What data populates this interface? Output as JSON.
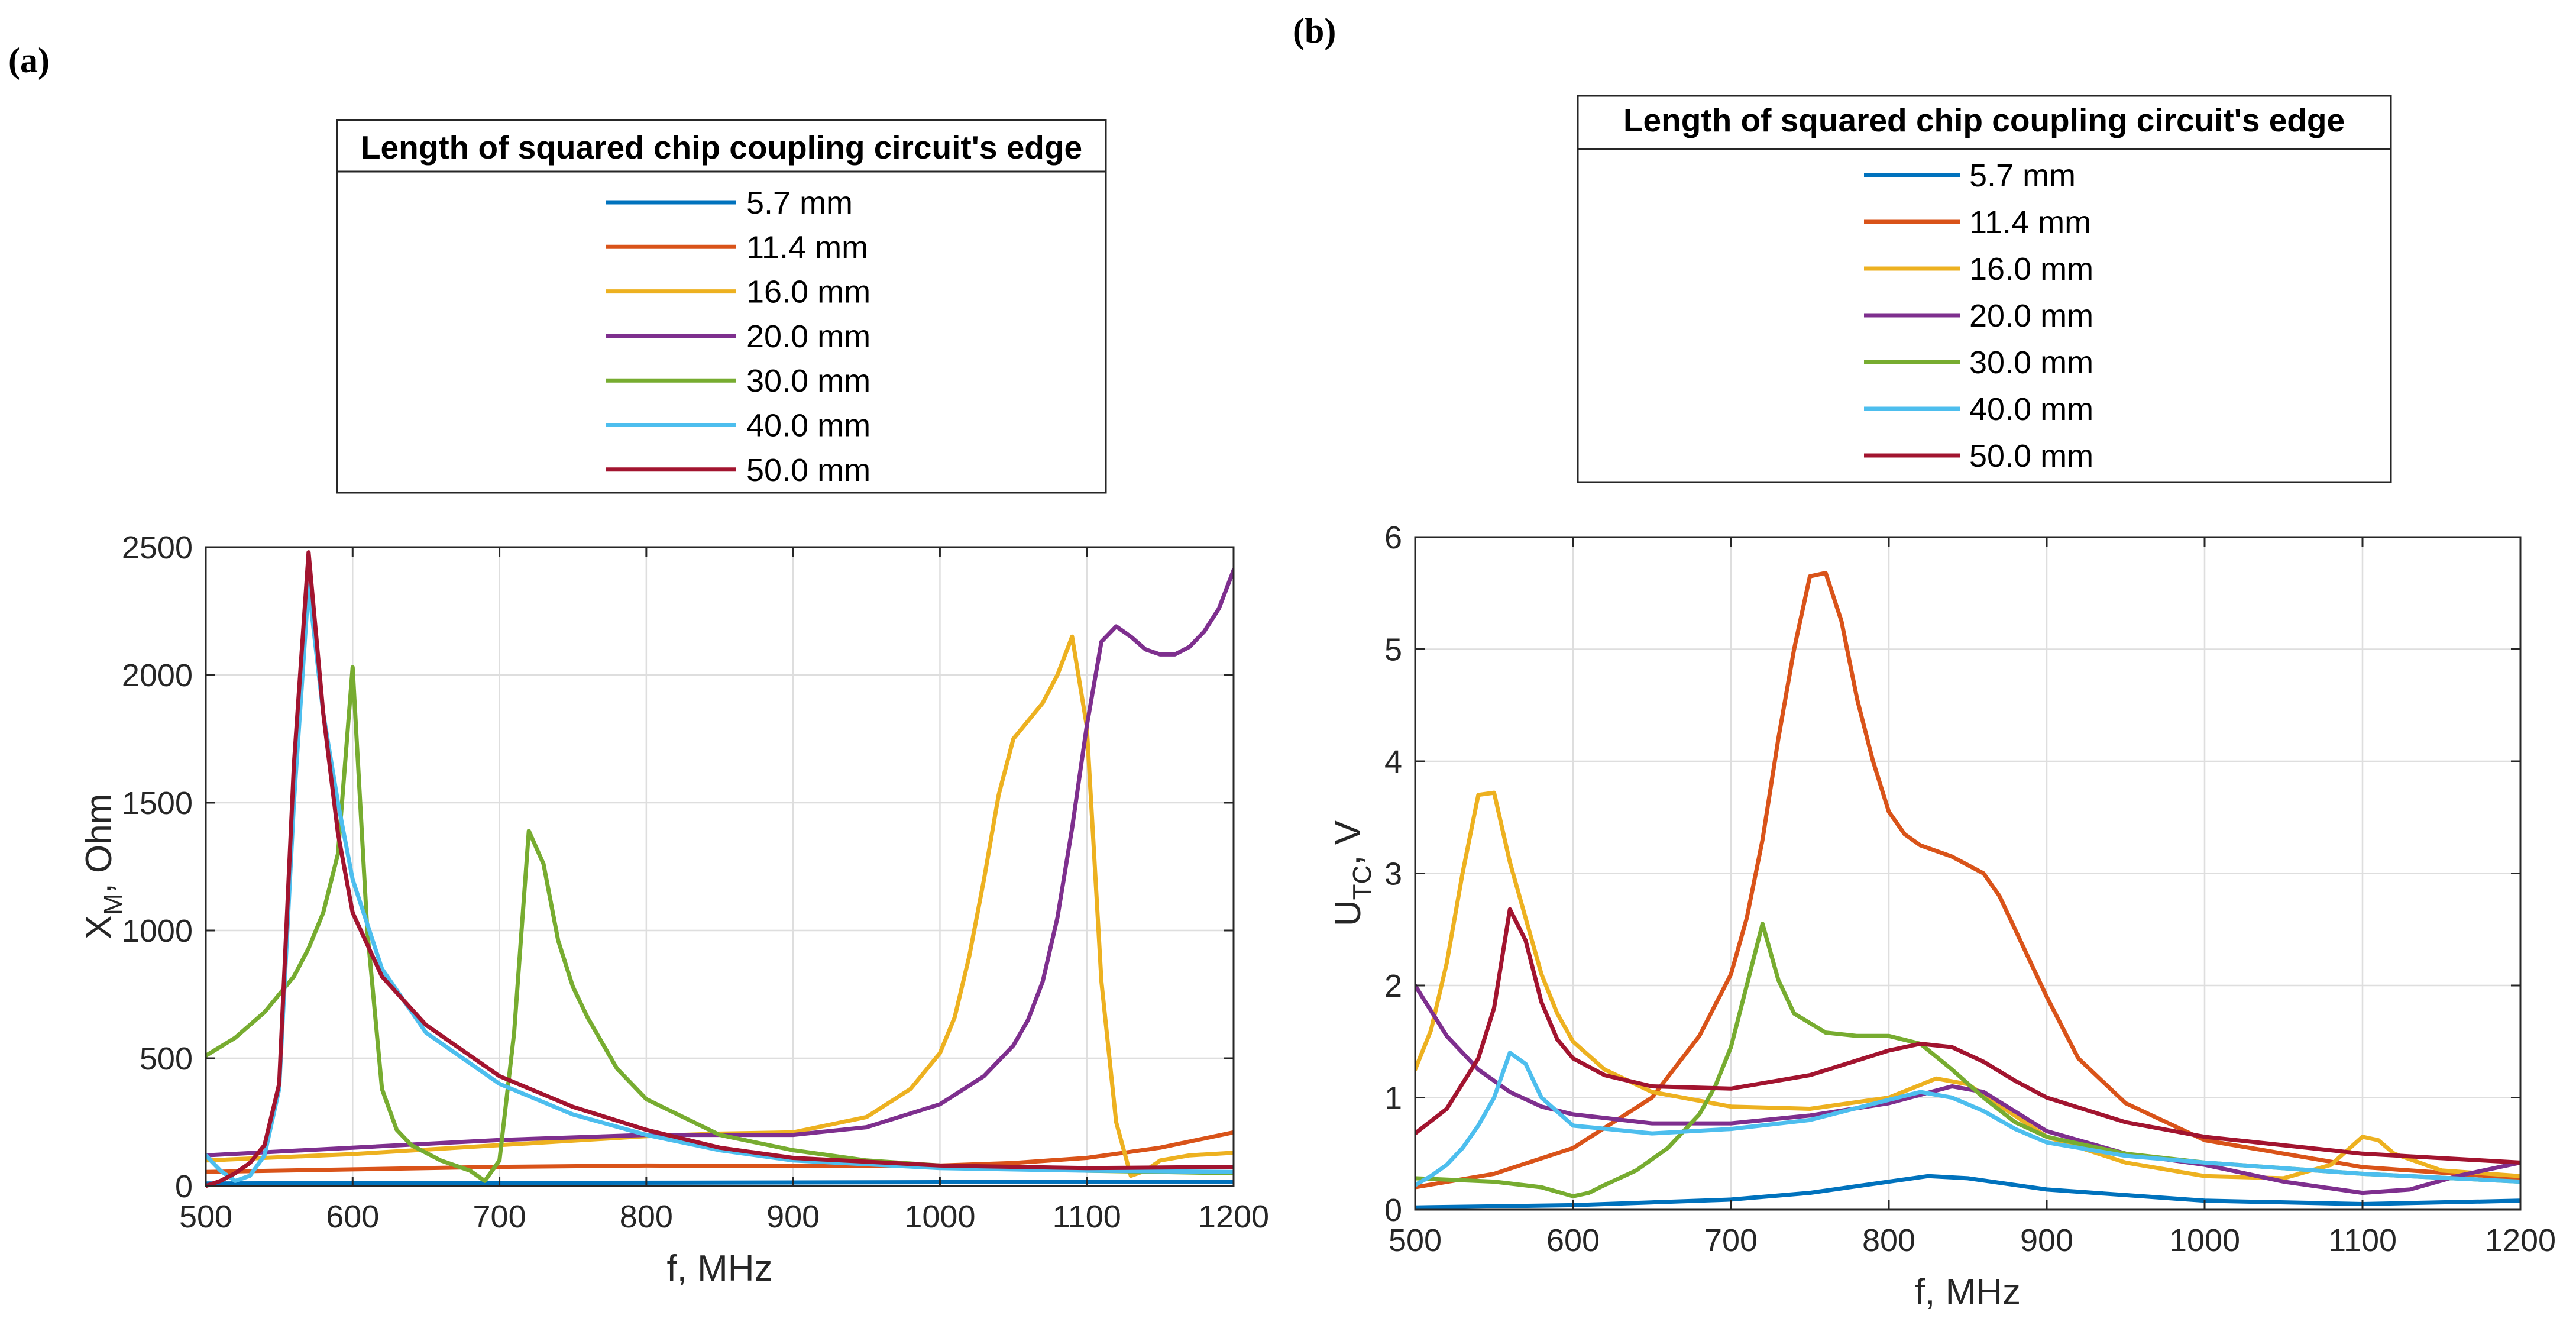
{
  "panels": [
    {
      "label": "(a)",
      "legend_title": "Length of squared chip coupling circuit's edge"
    },
    {
      "label": "(b)",
      "legend_title": "Length of squared chip coupling circuit's edge"
    }
  ],
  "chart_data": [
    {
      "type": "line",
      "title": "",
      "xlabel": "f, MHz",
      "ylabel": "X_M, Ohm",
      "ylabel_main": "X",
      "ylabel_sub": "M",
      "ylabel_rest": ", Ohm",
      "xlim": [
        500,
        1200
      ],
      "ylim": [
        0,
        2500
      ],
      "xticks": [
        500,
        600,
        700,
        800,
        900,
        1000,
        1100,
        1200
      ],
      "yticks": [
        0,
        500,
        1000,
        1500,
        2000,
        2500
      ],
      "grid": true,
      "legend_location": "top",
      "series": [
        {
          "name": "5.7 mm",
          "color": "#0072BD",
          "x": [
            500,
            700,
            900,
            1000,
            1100,
            1200
          ],
          "y": [
            10,
            12,
            14,
            15,
            15,
            15
          ]
        },
        {
          "name": "11.4 mm",
          "color": "#D95319",
          "x": [
            500,
            600,
            700,
            800,
            900,
            1000,
            1050,
            1100,
            1150,
            1200
          ],
          "y": [
            55,
            65,
            75,
            80,
            78,
            80,
            90,
            110,
            150,
            210
          ]
        },
        {
          "name": "16.0 mm",
          "color": "#EDB120",
          "x": [
            500,
            600,
            700,
            800,
            850,
            900,
            950,
            980,
            1000,
            1010,
            1020,
            1030,
            1040,
            1050,
            1060,
            1070,
            1080,
            1090,
            1100,
            1110,
            1120,
            1130,
            1140,
            1150,
            1170,
            1200
          ],
          "y": [
            100,
            125,
            160,
            195,
            205,
            210,
            270,
            380,
            520,
            660,
            900,
            1200,
            1530,
            1750,
            1820,
            1890,
            2000,
            2150,
            1800,
            800,
            250,
            40,
            60,
            100,
            120,
            130
          ]
        },
        {
          "name": "20.0 mm",
          "color": "#7E2F8E",
          "x": [
            500,
            600,
            700,
            800,
            900,
            950,
            1000,
            1030,
            1050,
            1060,
            1070,
            1080,
            1090,
            1100,
            1110,
            1120,
            1130,
            1140,
            1150,
            1160,
            1170,
            1180,
            1190,
            1200
          ],
          "y": [
            120,
            150,
            180,
            200,
            200,
            230,
            320,
            430,
            550,
            650,
            800,
            1050,
            1400,
            1800,
            2130,
            2190,
            2150,
            2100,
            2080,
            2080,
            2110,
            2170,
            2260,
            2410
          ]
        },
        {
          "name": "30.0 mm",
          "color": "#77AC30",
          "x": [
            500,
            520,
            540,
            560,
            570,
            580,
            590,
            600,
            610,
            620,
            630,
            640,
            660,
            680,
            690,
            700,
            710,
            720,
            730,
            740,
            750,
            760,
            780,
            800,
            850,
            900,
            950,
            1000,
            1100,
            1200
          ],
          "y": [
            510,
            580,
            680,
            820,
            930,
            1070,
            1300,
            2030,
            1000,
            380,
            220,
            160,
            100,
            60,
            20,
            100,
            600,
            1390,
            1260,
            960,
            780,
            660,
            460,
            340,
            200,
            140,
            100,
            80,
            60,
            50
          ]
        },
        {
          "name": "40.0 mm",
          "color": "#4DBEEE",
          "x": [
            500,
            510,
            520,
            530,
            540,
            550,
            560,
            570,
            580,
            590,
            600,
            620,
            650,
            700,
            750,
            800,
            850,
            900,
            1000,
            1100,
            1200
          ],
          "y": [
            120,
            60,
            20,
            40,
            120,
            380,
            1500,
            2350,
            1850,
            1500,
            1200,
            850,
            600,
            400,
            280,
            200,
            140,
            100,
            70,
            60,
            55
          ]
        },
        {
          "name": "50.0 mm",
          "color": "#A2142F",
          "x": [
            500,
            510,
            520,
            530,
            540,
            550,
            560,
            570,
            580,
            590,
            600,
            620,
            650,
            700,
            750,
            800,
            850,
            900,
            1000,
            1100,
            1200
          ],
          "y": [
            0,
            20,
            50,
            90,
            160,
            400,
            1650,
            2480,
            1850,
            1380,
            1070,
            820,
            630,
            430,
            310,
            220,
            150,
            110,
            80,
            70,
            75
          ]
        }
      ]
    },
    {
      "type": "line",
      "title": "",
      "xlabel": "f, MHz",
      "ylabel": "U_TC, V",
      "ylabel_main": "U",
      "ylabel_sub": "TC",
      "ylabel_rest": ", V",
      "xlim": [
        500,
        1200
      ],
      "ylim": [
        0,
        6
      ],
      "xticks": [
        500,
        600,
        700,
        800,
        900,
        1000,
        1100,
        1200
      ],
      "yticks": [
        0,
        1,
        2,
        3,
        4,
        5,
        6
      ],
      "grid": true,
      "legend_location": "top",
      "series": [
        {
          "name": "5.7 mm",
          "color": "#0072BD",
          "x": [
            500,
            600,
            700,
            750,
            800,
            825,
            850,
            900,
            1000,
            1100,
            1200
          ],
          "y": [
            0.02,
            0.04,
            0.09,
            0.15,
            0.25,
            0.3,
            0.28,
            0.18,
            0.08,
            0.05,
            0.08
          ]
        },
        {
          "name": "11.4 mm",
          "color": "#D95319",
          "x": [
            500,
            550,
            600,
            650,
            680,
            700,
            710,
            720,
            730,
            740,
            750,
            760,
            770,
            780,
            790,
            800,
            810,
            820,
            840,
            860,
            870,
            880,
            900,
            920,
            950,
            1000,
            1100,
            1200
          ],
          "y": [
            0.2,
            0.32,
            0.55,
            1.0,
            1.55,
            2.1,
            2.6,
            3.3,
            4.2,
            5.0,
            5.65,
            5.68,
            5.25,
            4.55,
            4.0,
            3.55,
            3.35,
            3.25,
            3.15,
            3.0,
            2.8,
            2.5,
            1.9,
            1.35,
            0.95,
            0.62,
            0.38,
            0.28
          ]
        },
        {
          "name": "16.0 mm",
          "color": "#EDB120",
          "x": [
            500,
            510,
            520,
            530,
            540,
            550,
            560,
            570,
            580,
            590,
            600,
            620,
            650,
            700,
            750,
            800,
            830,
            850,
            900,
            950,
            1000,
            1050,
            1080,
            1100,
            1110,
            1120,
            1150,
            1200
          ],
          "y": [
            1.25,
            1.6,
            2.2,
            3.0,
            3.7,
            3.72,
            3.1,
            2.6,
            2.1,
            1.75,
            1.5,
            1.25,
            1.05,
            0.92,
            0.9,
            1.0,
            1.17,
            1.12,
            0.65,
            0.42,
            0.3,
            0.28,
            0.4,
            0.65,
            0.62,
            0.5,
            0.35,
            0.3
          ]
        },
        {
          "name": "20.0 mm",
          "color": "#7E2F8E",
          "x": [
            500,
            520,
            540,
            560,
            580,
            600,
            650,
            700,
            750,
            800,
            840,
            860,
            900,
            950,
            1000,
            1050,
            1100,
            1130,
            1160,
            1200
          ],
          "y": [
            2.0,
            1.55,
            1.25,
            1.05,
            0.92,
            0.85,
            0.77,
            0.77,
            0.84,
            0.95,
            1.1,
            1.05,
            0.7,
            0.5,
            0.4,
            0.25,
            0.15,
            0.18,
            0.3,
            0.42
          ]
        },
        {
          "name": "30.0 mm",
          "color": "#77AC30",
          "x": [
            500,
            550,
            580,
            600,
            610,
            620,
            640,
            660,
            680,
            690,
            700,
            710,
            720,
            730,
            740,
            760,
            780,
            800,
            820,
            840,
            860,
            880,
            900,
            950,
            1000,
            1100,
            1200
          ],
          "y": [
            0.28,
            0.25,
            0.2,
            0.12,
            0.15,
            0.22,
            0.35,
            0.55,
            0.85,
            1.1,
            1.45,
            2.0,
            2.55,
            2.05,
            1.75,
            1.58,
            1.55,
            1.55,
            1.48,
            1.25,
            1.0,
            0.78,
            0.65,
            0.5,
            0.42,
            0.32,
            0.25
          ]
        },
        {
          "name": "40.0 mm",
          "color": "#4DBEEE",
          "x": [
            500,
            510,
            520,
            530,
            540,
            550,
            560,
            570,
            580,
            600,
            650,
            700,
            750,
            800,
            820,
            840,
            860,
            880,
            900,
            950,
            1000,
            1100,
            1200
          ],
          "y": [
            0.22,
            0.3,
            0.4,
            0.55,
            0.75,
            1.0,
            1.4,
            1.3,
            1.0,
            0.75,
            0.68,
            0.72,
            0.8,
            0.98,
            1.05,
            1.0,
            0.88,
            0.72,
            0.6,
            0.48,
            0.42,
            0.32,
            0.25
          ]
        },
        {
          "name": "50.0 mm",
          "color": "#A2142F",
          "x": [
            500,
            520,
            540,
            550,
            560,
            570,
            580,
            590,
            600,
            620,
            650,
            700,
            750,
            800,
            820,
            840,
            860,
            880,
            900,
            950,
            1000,
            1100,
            1200
          ],
          "y": [
            0.68,
            0.9,
            1.35,
            1.8,
            2.68,
            2.4,
            1.85,
            1.52,
            1.35,
            1.2,
            1.1,
            1.08,
            1.2,
            1.42,
            1.48,
            1.45,
            1.32,
            1.15,
            1.0,
            0.78,
            0.65,
            0.5,
            0.42
          ]
        }
      ]
    }
  ]
}
